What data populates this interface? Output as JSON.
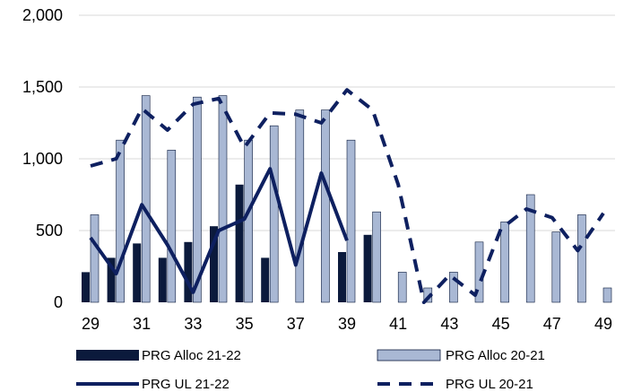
{
  "colors": {
    "alloc_2122": "#0b1a3c",
    "alloc_2021": "#a9b8d4",
    "alloc_2021_edge": "#0b1a3c",
    "ul_2122": "#0e2060",
    "ul_2021": "#0e2060",
    "grid": "#d9d9d9"
  },
  "chart_data": {
    "type": "bar",
    "x": [
      29,
      30,
      31,
      32,
      33,
      34,
      35,
      36,
      37,
      38,
      39,
      40,
      41,
      42,
      43,
      44,
      45,
      46,
      47,
      48,
      49
    ],
    "x_tick_labels": [
      "29",
      "31",
      "33",
      "35",
      "37",
      "39",
      "41",
      "43",
      "45",
      "47",
      "49"
    ],
    "y_tick_labels": [
      "0",
      "500",
      "1,000",
      "1,500",
      "2,000"
    ],
    "ylim": [
      0,
      2000
    ],
    "yticks": [
      0,
      500,
      1000,
      1500,
      2000
    ],
    "grid": true,
    "legend_position": "bottom",
    "series": [
      {
        "name": "PRG Alloc 21-22",
        "kind": "bar",
        "values": [
          210,
          310,
          410,
          310,
          420,
          530,
          820,
          310,
          null,
          null,
          350,
          470,
          null,
          null,
          null,
          null,
          null,
          null,
          null,
          null,
          null
        ]
      },
      {
        "name": "PRG Alloc 20-21",
        "kind": "bar",
        "values": [
          610,
          1130,
          1440,
          1060,
          1430,
          1440,
          1130,
          1230,
          1340,
          1340,
          1130,
          630,
          210,
          100,
          210,
          420,
          560,
          750,
          490,
          610,
          100
        ]
      },
      {
        "name": "PRG UL 21-22",
        "kind": "line",
        "style": "solid",
        "values": [
          450,
          200,
          680,
          400,
          70,
          500,
          580,
          930,
          260,
          900,
          430,
          null,
          null,
          null,
          null,
          null,
          null,
          null,
          null,
          null,
          null
        ]
      },
      {
        "name": "PRG UL 20-21",
        "kind": "line",
        "style": "dashed",
        "values": [
          950,
          1000,
          1350,
          1200,
          1380,
          1420,
          1080,
          1320,
          1310,
          1250,
          1480,
          1340,
          820,
          0,
          190,
          50,
          510,
          650,
          590,
          360,
          620
        ]
      }
    ]
  },
  "legend": [
    {
      "label": "PRG Alloc 21-22",
      "swatch": "bar",
      "color_key": "alloc_2122"
    },
    {
      "label": "PRG Alloc 20-21",
      "swatch": "bar",
      "color_key": "alloc_2021"
    },
    {
      "label": "PRG UL 21-22",
      "swatch": "line",
      "color_key": "ul_2122"
    },
    {
      "label": "PRG UL 20-21",
      "swatch": "dash",
      "color_key": "ul_2021"
    }
  ]
}
